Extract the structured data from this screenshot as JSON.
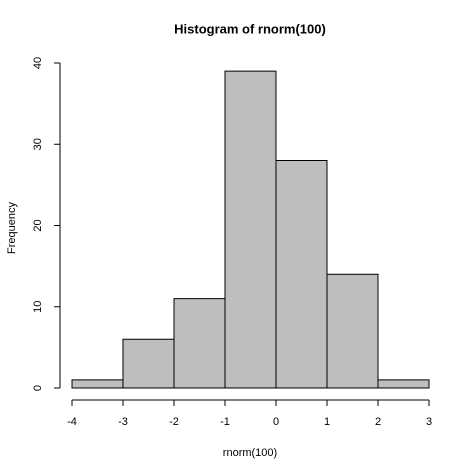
{
  "chart_data": {
    "type": "histogram",
    "title": "Histogram of rnorm(100)",
    "x_label": "rnorm(100)",
    "y_label": "Frequency",
    "bins": [
      -4,
      -3,
      -2,
      -1,
      0,
      1,
      2,
      3
    ],
    "values": [
      1,
      6,
      11,
      39,
      28,
      14,
      1
    ],
    "color": "#bebebe",
    "xlim": [
      -4,
      3
    ],
    "xticks": [
      -4,
      -3,
      -2,
      -1,
      0,
      1,
      2,
      3
    ],
    "ylim": [
      0,
      40
    ],
    "yticks": [
      0,
      10,
      20,
      30,
      40
    ]
  }
}
